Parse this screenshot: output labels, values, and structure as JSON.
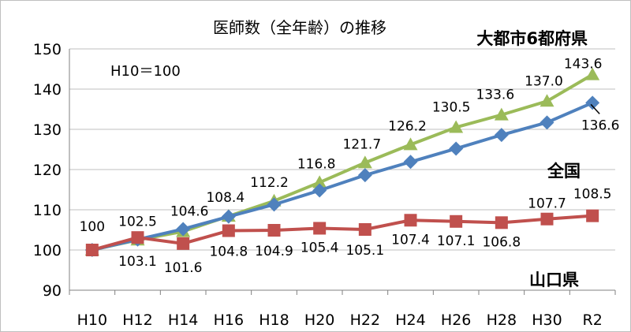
{
  "chart_data": {
    "type": "line",
    "title": "医師数（全年齢）の推移",
    "annotation": "H10＝100",
    "categories": [
      "H10",
      "H12",
      "H14",
      "H16",
      "H18",
      "H20",
      "H22",
      "H24",
      "H26",
      "H28",
      "H30",
      "R2"
    ],
    "ylim": [
      90,
      150
    ],
    "yticks": [
      90,
      100,
      110,
      120,
      130,
      140,
      150
    ],
    "grid": true,
    "series": [
      {
        "name": "大都市6都府県",
        "color": "#9BBB59",
        "marker": "triangle",
        "values": [
          100,
          102.5,
          104.6,
          108.4,
          112.2,
          116.8,
          121.7,
          126.2,
          130.5,
          133.6,
          137.0,
          143.6
        ],
        "labels": [
          "100",
          "102.5",
          "104.6",
          "108.4",
          "112.2",
          "116.8",
          "121.7",
          "126.2",
          "130.5",
          "133.6",
          "137.0",
          "143.6"
        ]
      },
      {
        "name": "全国",
        "color": "#4F81BD",
        "marker": "diamond",
        "values": [
          100,
          102.6,
          105.2,
          108.3,
          111.3,
          114.8,
          118.6,
          121.9,
          125.2,
          128.6,
          131.7,
          136.6
        ],
        "labels": [
          "",
          "",
          "",
          "",
          "",
          "",
          "",
          "",
          "",
          "",
          "",
          "136.6"
        ]
      },
      {
        "name": "山口県",
        "color": "#C0504D",
        "marker": "square",
        "values": [
          100,
          103.1,
          101.6,
          104.8,
          104.9,
          105.4,
          105.1,
          107.4,
          107.1,
          106.8,
          107.7,
          108.5
        ],
        "labels": [
          "",
          "103.1",
          "101.6",
          "104.8",
          "104.9",
          "105.4",
          "105.1",
          "107.4",
          "107.1",
          "106.8",
          "107.7",
          "108.5"
        ]
      }
    ]
  }
}
